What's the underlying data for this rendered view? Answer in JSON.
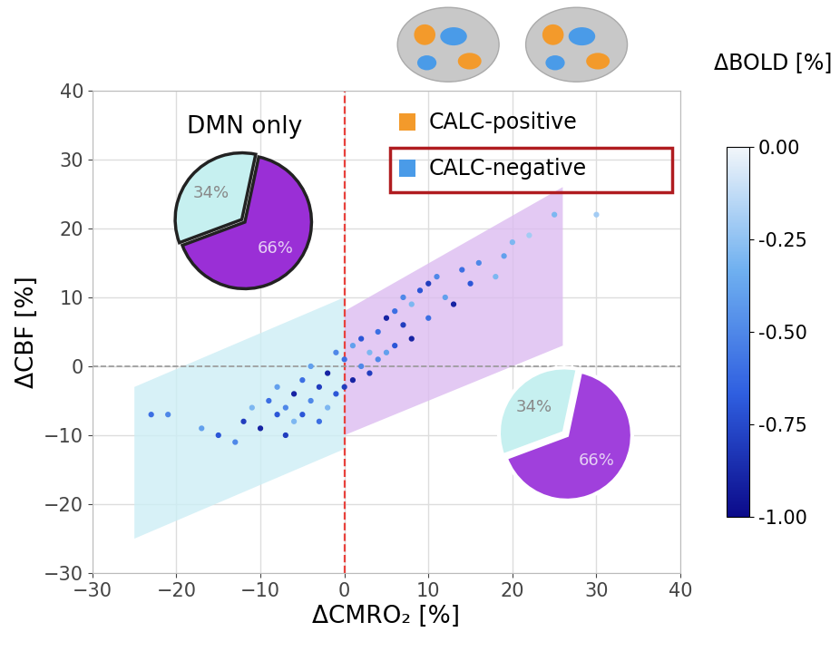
{
  "chart_data": [
    {
      "type": "scatter",
      "x_label": "ΔCMRO₂ [%]",
      "y_label": "ΔCBF [%]",
      "xlim": [
        -30,
        40
      ],
      "ylim": [
        -30,
        40
      ],
      "xticks": [
        {
          "value": -30,
          "label": "−30"
        },
        {
          "value": -20,
          "label": "−20"
        },
        {
          "value": -10,
          "label": "−10"
        },
        0,
        10,
        20,
        30,
        40
      ],
      "yticks": [
        {
          "value": -30,
          "label": "−30"
        },
        {
          "value": -20,
          "label": "−20"
        },
        {
          "value": -10,
          "label": "−10"
        },
        0,
        10,
        20,
        30,
        40
      ],
      "grid": true,
      "vline": 0,
      "hline": 0,
      "regions": [
        {
          "color": "#cdeef5",
          "x": [
            -25,
            0,
            0,
            -25
          ],
          "y": [
            -25,
            -12,
            10,
            -3
          ]
        },
        {
          "color": "#dcbcf0",
          "x": [
            0,
            26,
            26,
            0
          ],
          "y": [
            -10,
            3,
            26,
            8
          ]
        }
      ],
      "x": [
        -23,
        -21,
        -17,
        -15,
        -13,
        -12,
        -11,
        -10,
        -9,
        -8,
        -8,
        -7,
        -7,
        -6,
        -6,
        -5,
        -5,
        -4,
        -4,
        -3,
        -3,
        -2,
        -2,
        -1,
        -1,
        0,
        0,
        1,
        1,
        2,
        2,
        3,
        3,
        4,
        4,
        5,
        5,
        6,
        6,
        7,
        7,
        8,
        8,
        9,
        10,
        10,
        11,
        12,
        13,
        14,
        15,
        16,
        18,
        19,
        20,
        22,
        25,
        30
      ],
      "y": [
        -7,
        -7,
        -9,
        -10,
        -11,
        -8,
        -6,
        -9,
        -5,
        -7,
        -3,
        -10,
        -6,
        -4,
        -8,
        -2,
        -7,
        -5,
        0,
        -3,
        -8,
        -1,
        -6,
        2,
        -4,
        1,
        -3,
        3,
        -2,
        0,
        4,
        2,
        -1,
        5,
        1,
        7,
        2,
        3,
        8,
        6,
        10,
        4,
        9,
        11,
        7,
        12,
        13,
        10,
        9,
        14,
        12,
        15,
        13,
        16,
        18,
        19,
        22,
        22
      ],
      "bold": [
        -0.6,
        -0.5,
        -0.4,
        -0.7,
        -0.5,
        -0.8,
        -0.3,
        -0.9,
        -0.6,
        -0.7,
        -0.4,
        -0.8,
        -0.5,
        -0.9,
        -0.3,
        -0.6,
        -0.7,
        -0.5,
        -0.4,
        -0.8,
        -0.6,
        -0.9,
        -0.3,
        -0.5,
        -0.7,
        -0.6,
        -0.8,
        -0.4,
        -0.9,
        -0.5,
        -0.7,
        -0.3,
        -0.8,
        -0.6,
        -0.5,
        -0.9,
        -0.4,
        -0.7,
        -0.6,
        -0.8,
        -0.5,
        -0.9,
        -0.3,
        -0.7,
        -0.6,
        -0.8,
        -0.5,
        -0.4,
        -0.9,
        -0.6,
        -0.7,
        -0.5,
        -0.3,
        -0.4,
        -0.3,
        -0.2,
        -0.3,
        -0.2
      ],
      "colorbar": {
        "label": "ΔBOLD [%]",
        "range": [
          -1.0,
          0.0
        ],
        "ticks": [
          {
            "value": 0.0,
            "label": "0.00"
          },
          {
            "value": -0.25,
            "label": "-0.25"
          },
          {
            "value": -0.5,
            "label": "-0.50"
          },
          {
            "value": -0.75,
            "label": "-0.75"
          },
          {
            "value": -1.0,
            "label": "-1.00"
          }
        ]
      },
      "legend": "upper right",
      "legend_items": [
        {
          "name": "CALC-positive",
          "color": "#f39a2b"
        },
        {
          "name": "CALC-negative",
          "color": "#4a9be8"
        }
      ]
    },
    {
      "type": "pie",
      "title": "DMN only",
      "values": [
        34,
        66
      ],
      "value_labels": [
        "34%",
        "66%"
      ],
      "colors": [
        "#c6f0f0",
        "#9a2fd6"
      ]
    },
    {
      "type": "pie",
      "values": [
        34,
        66
      ],
      "value_labels": [
        "34%",
        "66%"
      ],
      "colors": [
        "#c6f0f0",
        "#a040dc"
      ]
    }
  ]
}
